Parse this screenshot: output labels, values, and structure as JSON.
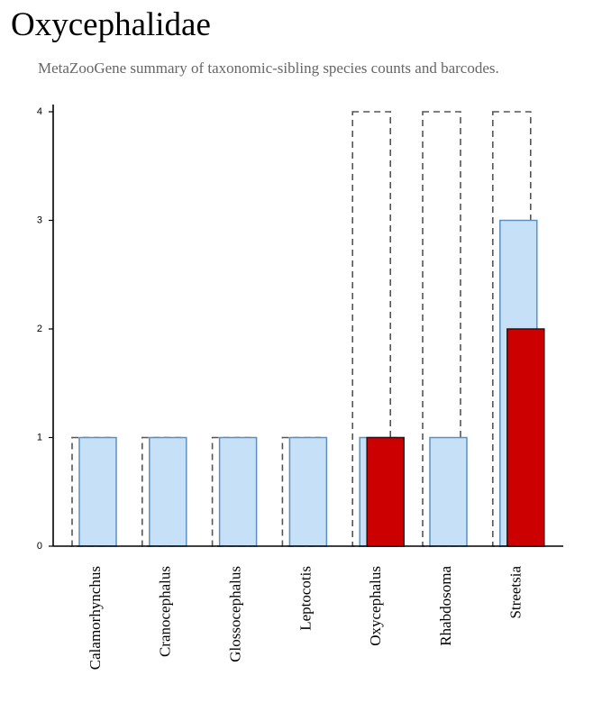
{
  "title": "Oxycephalidae",
  "subtitle": "MetaZooGene summary of taxonomic-sibling species counts and barcodes.",
  "colors": {
    "outline": "#555555",
    "species_fill": "#c6e0f8",
    "species_stroke": "#5b8fc4",
    "barcode_fill": "#cc0000",
    "barcode_stroke": "#1a1a1a"
  },
  "chart_data": {
    "type": "bar",
    "categories": [
      "Calamorhynchus",
      "Cranocephalus",
      "Glossocephalus",
      "Leptocotis",
      "Oxycephalus",
      "Rhabdosoma",
      "Streetsia"
    ],
    "series": [
      {
        "style": "dashed-outline",
        "values": [
          1,
          1,
          1,
          1,
          4,
          4,
          4
        ]
      },
      {
        "style": "light-blue",
        "values": [
          1,
          1,
          1,
          1,
          1,
          1,
          3
        ]
      },
      {
        "style": "red",
        "values": [
          0,
          0,
          0,
          0,
          1,
          0,
          2
        ]
      }
    ],
    "ylim": [
      0,
      4
    ],
    "yticks": [
      "0",
      "1",
      "2",
      "3",
      "4"
    ],
    "xlabel": "",
    "ylabel": "",
    "grid": false
  }
}
